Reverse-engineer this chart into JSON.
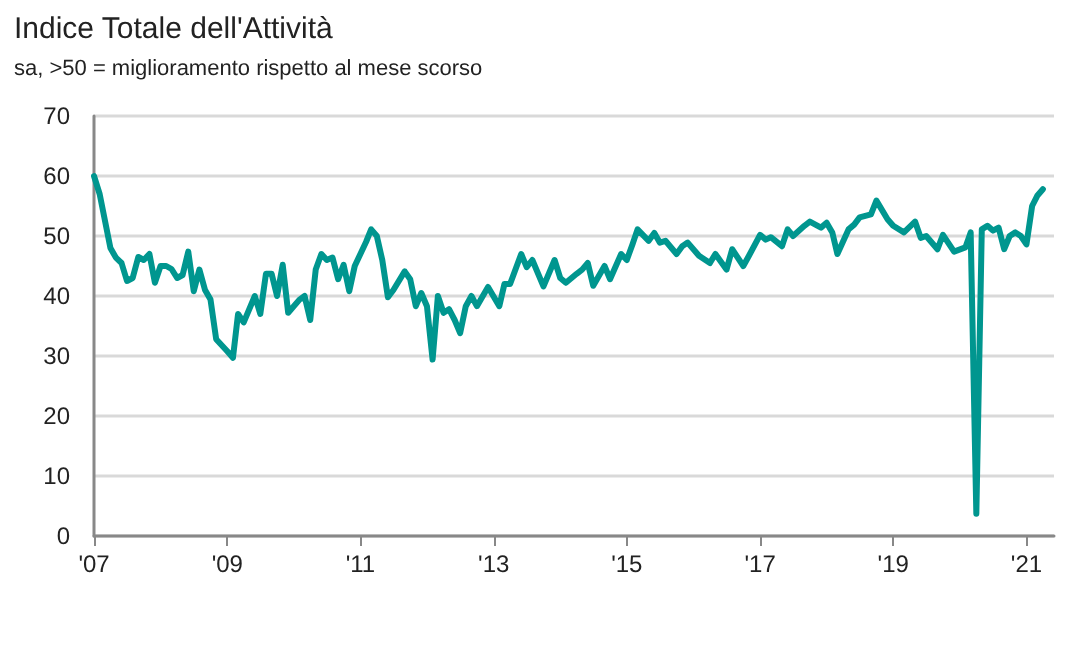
{
  "chart_data": {
    "type": "line",
    "title": "Indice Totale dell'Attività",
    "subtitle": "sa, >50 = miglioramento rispetto al mese scorso",
    "xlim": [
      "2007",
      "2021-06"
    ],
    "xticks": [
      {
        "value": "2007",
        "label": "'07"
      },
      {
        "value": "2009",
        "label": "'09"
      },
      {
        "value": "2011",
        "label": "'11"
      },
      {
        "value": "2013",
        "label": "'13"
      },
      {
        "value": "2015",
        "label": "'15"
      },
      {
        "value": "2017",
        "label": "'17"
      },
      {
        "value": "2019",
        "label": "'19"
      },
      {
        "value": "2021",
        "label": "'21"
      }
    ],
    "ylim": [
      0,
      70
    ],
    "yticks": [
      0,
      10,
      20,
      30,
      40,
      50,
      60,
      70
    ],
    "grid": "y",
    "series": [
      {
        "color": "#00968f",
        "x": [
          "2007-01",
          "2007-02",
          "2007-04",
          "2007-05",
          "2007-06",
          "2007-07",
          "2007-08",
          "2007-09",
          "2007-10",
          "2007-11",
          "2007-12",
          "2008-01",
          "2008-02",
          "2008-03",
          "2008-04",
          "2008-05",
          "2008-06",
          "2008-07",
          "2008-08",
          "2008-09",
          "2008-10",
          "2008-11",
          "2009-01",
          "2009-02",
          "2009-03",
          "2009-04",
          "2009-06",
          "2009-07",
          "2009-08",
          "2009-09",
          "2009-10",
          "2009-11",
          "2009-12",
          "2010-02",
          "2010-03",
          "2010-04",
          "2010-05",
          "2010-06",
          "2010-07",
          "2010-08",
          "2010-09",
          "2010-10",
          "2010-11",
          "2010-12",
          "2011-01",
          "2011-02",
          "2011-03",
          "2011-04",
          "2011-05",
          "2011-06",
          "2011-07",
          "2011-09",
          "2011-10",
          "2011-11",
          "2011-12",
          "2012-01",
          "2012-02",
          "2012-03",
          "2012-04",
          "2012-05",
          "2012-06",
          "2012-07",
          "2012-08",
          "2012-09",
          "2012-10",
          "2012-12",
          "2013-02",
          "2013-03",
          "2013-04",
          "2013-06",
          "2013-07",
          "2013-08",
          "2013-10",
          "2013-12",
          "2014-01",
          "2014-02",
          "2014-04",
          "2014-05",
          "2014-06",
          "2014-07",
          "2014-09",
          "2014-10",
          "2014-12",
          "2015-01",
          "2015-02",
          "2015-03",
          "2015-05",
          "2015-06",
          "2015-07",
          "2015-08",
          "2015-10",
          "2015-11",
          "2015-12",
          "2016-02",
          "2016-04",
          "2016-05",
          "2016-07",
          "2016-08",
          "2016-10",
          "2016-11",
          "2017-01",
          "2017-02",
          "2017-03",
          "2017-05",
          "2017-06",
          "2017-07",
          "2017-09",
          "2017-10",
          "2017-12",
          "2018-01",
          "2018-02",
          "2018-03",
          "2018-05",
          "2018-06",
          "2018-07",
          "2018-09",
          "2018-10",
          "2018-12",
          "2019-01",
          "2019-03",
          "2019-05",
          "2019-06",
          "2019-07",
          "2019-09",
          "2019-10",
          "2019-12",
          "2020-02",
          "2020-03",
          "2020-04",
          "2020-05",
          "2020-06",
          "2020-07",
          "2020-08",
          "2020-09",
          "2020-10",
          "2020-11",
          "2020-12",
          "2021-01",
          "2021-02",
          "2021-03",
          "2021-04"
        ],
        "values": [
          60,
          57,
          48,
          46.4,
          45.5,
          42.5,
          43,
          46.5,
          46,
          47,
          42.2,
          45,
          45,
          44.5,
          43,
          43.5,
          47.4,
          40.8,
          44.4,
          41,
          39.4,
          32.8,
          30.8,
          29.7,
          37,
          35.6,
          40,
          37,
          43.7,
          43.7,
          40,
          45.2,
          37.2,
          39.4,
          40,
          36,
          44.4,
          47,
          46,
          46.4,
          42.8,
          45.2,
          40.8,
          45,
          47,
          49,
          51.1,
          50,
          46,
          39.8,
          41,
          44.1,
          42.8,
          38.3,
          40.5,
          38.3,
          29.4,
          40,
          37.2,
          37.8,
          36,
          33.8,
          38.3,
          40,
          38.3,
          41.5,
          38.3,
          42,
          42,
          47,
          44.8,
          46,
          41.6,
          46,
          43,
          42.2,
          43.7,
          44.4,
          45.5,
          41.7,
          45,
          42.8,
          47,
          46,
          48.6,
          51.1,
          49.2,
          50.5,
          48.9,
          49.2,
          47,
          48.3,
          48.9,
          46.7,
          45.5,
          47,
          44.4,
          47.8,
          45,
          46.7,
          50.2,
          49.4,
          49.8,
          48.3,
          51.1,
          50,
          51.7,
          52.4,
          51.4,
          52.2,
          50.6,
          47,
          51.1,
          51.9,
          53.1,
          53.6,
          55.9,
          52.8,
          51.7,
          50.6,
          52.4,
          49.7,
          50,
          47.8,
          50.2,
          47.4,
          48.1,
          50.6,
          3.7,
          51.1,
          51.7,
          50.9,
          51.4,
          47.8,
          50,
          50.6,
          50,
          48.6,
          55,
          56.7,
          57.8
        ]
      }
    ]
  }
}
